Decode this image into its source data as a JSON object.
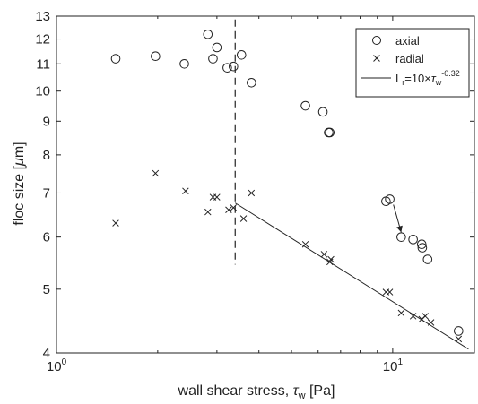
{
  "chart_data": {
    "type": "scatter",
    "x_scale": "log",
    "y_scale": "log",
    "xlim": [
      1,
      17.5
    ],
    "ylim": [
      4,
      13
    ],
    "x_ticks": [
      1,
      10
    ],
    "x_tick_labels": [
      {
        "base": "10",
        "exp": "0"
      },
      {
        "base": "10",
        "exp": "1"
      }
    ],
    "y_ticks": [
      4,
      5,
      6,
      7,
      8,
      9,
      10,
      11,
      12,
      13
    ],
    "y_tick_labels": [
      "4",
      "5",
      "6",
      "7",
      "8",
      "9",
      "10",
      "11",
      "12",
      "13"
    ],
    "xlabel": {
      "text": "wall shear stress, ",
      "symbol": "τ",
      "sub": "w",
      "unit": " [Pa]"
    },
    "ylabel": {
      "text": "floc size [",
      "symbol": "μ",
      "unit": "m]"
    },
    "grid": false,
    "legend": {
      "position": "top-right",
      "entries": [
        {
          "label": "axial",
          "marker": "circle-icon"
        },
        {
          "label": "radial",
          "marker": "cross-icon"
        },
        {
          "marker": "line-icon",
          "parts": {
            "L": "L",
            "Lsub": "r",
            "eq": "=10×",
            "tau": "τ",
            "tsub": "w",
            "exp": "-0.32"
          }
        }
      ]
    },
    "series": [
      {
        "name": "axial",
        "marker": "circle",
        "points": [
          [
            1.5,
            11.2
          ],
          [
            1.97,
            11.3
          ],
          [
            2.4,
            11.0
          ],
          [
            2.82,
            12.2
          ],
          [
            2.92,
            11.2
          ],
          [
            3.0,
            11.65
          ],
          [
            3.22,
            10.85
          ],
          [
            3.36,
            10.9
          ],
          [
            3.55,
            11.35
          ],
          [
            3.8,
            10.3
          ],
          [
            5.5,
            9.5
          ],
          [
            6.2,
            9.3
          ],
          [
            6.45,
            8.65
          ],
          [
            6.5,
            8.65
          ],
          [
            9.55,
            6.8
          ],
          [
            9.8,
            6.85
          ],
          [
            10.6,
            6.0
          ],
          [
            11.5,
            5.95
          ],
          [
            12.2,
            5.85
          ],
          [
            12.25,
            5.78
          ],
          [
            12.7,
            5.55
          ],
          [
            15.7,
            4.32
          ]
        ]
      },
      {
        "name": "radial",
        "marker": "cross",
        "points": [
          [
            1.5,
            6.3
          ],
          [
            1.97,
            7.5
          ],
          [
            2.42,
            7.05
          ],
          [
            2.82,
            6.55
          ],
          [
            2.92,
            6.9
          ],
          [
            3.0,
            6.9
          ],
          [
            3.25,
            6.6
          ],
          [
            3.36,
            6.65
          ],
          [
            3.6,
            6.4
          ],
          [
            3.8,
            7.0
          ],
          [
            5.5,
            5.85
          ],
          [
            6.25,
            5.65
          ],
          [
            6.5,
            5.5
          ],
          [
            6.55,
            5.55
          ],
          [
            9.55,
            4.95
          ],
          [
            9.8,
            4.95
          ],
          [
            10.6,
            4.6
          ],
          [
            11.5,
            4.55
          ],
          [
            12.2,
            4.5
          ],
          [
            12.5,
            4.55
          ],
          [
            13.0,
            4.45
          ],
          [
            15.7,
            4.2
          ]
        ]
      },
      {
        "marker": "line",
        "formula": {
          "coefficient": 10,
          "exponent": -0.32
        },
        "x_range": [
          3.4,
          16.8
        ]
      }
    ],
    "annotations": [
      {
        "type": "vertical-dashed-line",
        "x": 3.4,
        "y_range": [
          5.45,
          12.85
        ]
      },
      {
        "type": "arrow",
        "from": [
          10.05,
          6.72
        ],
        "to": [
          10.6,
          6.1
        ]
      }
    ]
  }
}
